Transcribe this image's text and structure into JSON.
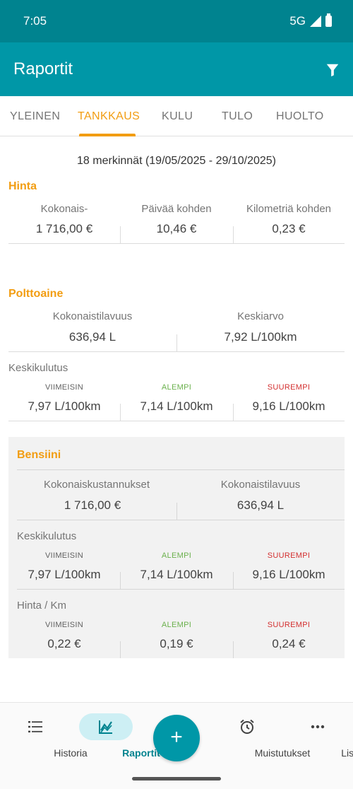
{
  "status_bar": {
    "time": "7:05",
    "network": "5G"
  },
  "app_bar": {
    "title": "Raportit",
    "filter_icon": "filter-icon"
  },
  "tabs": [
    {
      "label": "YLEINEN"
    },
    {
      "label": "TANKKAUS"
    },
    {
      "label": "KULU"
    },
    {
      "label": "TULO"
    },
    {
      "label": "HUOLTO"
    }
  ],
  "colors": {
    "primary": "#0097a7",
    "status_bar": "#00838f",
    "accent": "#f29d12",
    "green": "#6ab04c",
    "red": "#d32f2f"
  },
  "summary": "18 merkinnät (19/05/2025 - 29/10/2025)",
  "hinta": {
    "title": "Hinta",
    "stats": [
      {
        "label": "Kokonais-",
        "value": "1 716,00 €"
      },
      {
        "label": "Päivää kohden",
        "value": "10,46 €"
      },
      {
        "label": "Kilometriä kohden",
        "value": "0,23 €"
      }
    ]
  },
  "polttoaine": {
    "title": "Polttoaine",
    "stats": [
      {
        "label": "Kokonaistilavuus",
        "value": "636,94 L"
      },
      {
        "label": "Keskiarvo",
        "value": "7,92 L/100km"
      }
    ],
    "keskikulutus": {
      "title": "Keskikulutus",
      "items": [
        {
          "label": "VIIMEISIN",
          "value": "7,97 L/100km"
        },
        {
          "label": "ALEMPI",
          "value": "7,14 L/100km"
        },
        {
          "label": "SUUREMPI",
          "value": "9,16 L/100km"
        }
      ]
    }
  },
  "bensiini": {
    "title": "Bensiini",
    "stats": [
      {
        "label": "Kokonaiskustannukset",
        "value": "1 716,00 €"
      },
      {
        "label": "Kokonaistilavuus",
        "value": "636,94 L"
      }
    ],
    "keskikulutus": {
      "title": "Keskikulutus",
      "items": [
        {
          "label": "VIIMEISIN",
          "value": "7,97 L/100km"
        },
        {
          "label": "ALEMPI",
          "value": "7,14 L/100km"
        },
        {
          "label": "SUUREMPI",
          "value": "9,16 L/100km"
        }
      ]
    },
    "hinta_km": {
      "title": "Hinta / Km",
      "items": [
        {
          "label": "VIIMEISIN",
          "value": "0,22 €"
        },
        {
          "label": "ALEMPI",
          "value": "0,19 €"
        },
        {
          "label": "SUUREMPI",
          "value": "0,24 €"
        }
      ]
    }
  },
  "bottom_nav": {
    "items": [
      {
        "label": "Historia",
        "icon": "list-icon"
      },
      {
        "label": "Raportit",
        "icon": "chart-icon"
      },
      {
        "label": "Muistutukset",
        "icon": "alarm-icon"
      },
      {
        "label": "Lisää",
        "icon": "more-icon"
      }
    ],
    "fab_symbol": "+"
  }
}
